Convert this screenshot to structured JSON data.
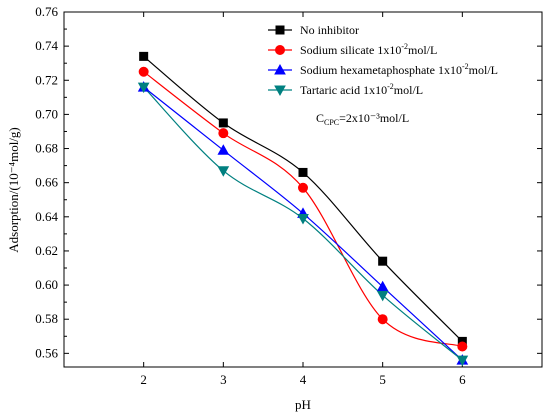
{
  "chart_data": {
    "type": "line",
    "x": [
      2,
      3,
      4,
      5,
      6
    ],
    "xlabel": "pH",
    "ylabel": "Adsorption/(10⁻⁴mol/g)",
    "xlim": [
      1,
      7
    ],
    "ylim": [
      0.552,
      0.76
    ],
    "xticks": [
      2,
      3,
      4,
      5,
      6
    ],
    "yticks": [
      0.56,
      0.58,
      0.6,
      0.62,
      0.64,
      0.66,
      0.68,
      0.7,
      0.72,
      0.74,
      0.76
    ],
    "grid": false,
    "legend_position": "top-right",
    "series": [
      {
        "name": "No inhibitor",
        "color": "#000000",
        "marker": "square",
        "values": [
          0.734,
          0.695,
          0.666,
          0.614,
          0.567
        ]
      },
      {
        "name": "Sodium silicate 1x10⁻²mol/L",
        "color": "#ff0000",
        "marker": "circle",
        "values": [
          0.725,
          0.689,
          0.657,
          0.58,
          0.564
        ]
      },
      {
        "name": "Sodium hexametaphosphate 1x10⁻²mol/L",
        "color": "#0000ff",
        "marker": "triangle-up",
        "values": [
          0.716,
          0.679,
          0.642,
          0.599,
          0.556
        ]
      },
      {
        "name": "Tartaric acid 1x10⁻²mol/L",
        "color": "#008080",
        "marker": "triangle-down",
        "values": [
          0.716,
          0.667,
          0.639,
          0.594,
          0.556
        ]
      }
    ],
    "annotation": {
      "prefix": "C",
      "subscript": "CPC",
      "suffix": "=2x10⁻³mol/L"
    }
  }
}
